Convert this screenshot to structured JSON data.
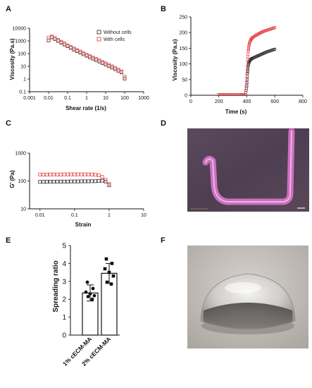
{
  "panels": {
    "A": "A",
    "B": "B",
    "C": "C",
    "D": "D",
    "E": "E",
    "F": "F"
  },
  "colors": {
    "without_cells": "#333333",
    "with_cells": "#e8474c",
    "bar_fill": "#ffffff",
    "point": "#111111"
  },
  "chart_data": [
    {
      "panel": "A",
      "type": "scatter",
      "xlabel": "Shear rate (1/s)",
      "ylabel": "Viscosity (Pa.s)",
      "xscale": "log",
      "yscale": "log",
      "xlim": [
        0.001,
        1000
      ],
      "ylim": [
        0.1,
        10000
      ],
      "x_ticks": [
        0.001,
        0.01,
        0.1,
        1,
        10,
        100,
        1000
      ],
      "x_tick_labels": [
        "0.001",
        "0.01",
        "0.1",
        "1",
        "10",
        "100",
        "1000"
      ],
      "y_ticks": [
        0.1,
        1,
        10,
        100,
        1000,
        10000
      ],
      "y_tick_labels": [
        "0.1",
        "1",
        "10",
        "100",
        "1000",
        "10000"
      ],
      "legend": "top-right",
      "series": [
        {
          "name": "Without cells",
          "marker": "square-open",
          "x": [
            0.01,
            0.0147,
            0.0215,
            0.0316,
            0.0464,
            0.0681,
            0.1,
            0.147,
            0.215,
            0.316,
            0.464,
            0.681,
            1,
            1.47,
            2.15,
            3.16,
            4.64,
            6.81,
            10,
            14.7,
            21.5,
            31.6,
            46.4,
            68.1,
            100
          ],
          "y": [
            1100,
            1900,
            1400,
            1000,
            720,
            520,
            380,
            280,
            210,
            160,
            120,
            90,
            68,
            52,
            40,
            31,
            24,
            18,
            14,
            10.5,
            8,
            6,
            4.5,
            3.3,
            1.1
          ]
        },
        {
          "name": "With cells",
          "marker": "square-open",
          "x": [
            0.01,
            0.0147,
            0.0215,
            0.0316,
            0.0464,
            0.0681,
            0.1,
            0.147,
            0.215,
            0.316,
            0.464,
            0.681,
            1,
            1.47,
            2.15,
            3.16,
            4.64,
            6.81,
            10,
            14.7,
            21.5,
            31.6,
            46.4,
            68.1,
            100
          ],
          "y": [
            1800,
            2200,
            1700,
            1200,
            850,
            620,
            450,
            330,
            250,
            190,
            145,
            110,
            82,
            63,
            49,
            38,
            29,
            22,
            17,
            13,
            10,
            7.5,
            5.5,
            4,
            1.5
          ]
        }
      ]
    },
    {
      "panel": "B",
      "type": "scatter",
      "xlabel": "Time (s)",
      "ylabel": "Viscosity (Pa.s)",
      "xlim": [
        0,
        800
      ],
      "ylim": [
        0,
        250
      ],
      "x_ticks": [
        0,
        200,
        400,
        600,
        800
      ],
      "x_tick_labels": [
        "0",
        "200",
        "400",
        "600",
        "800"
      ],
      "y_ticks": [
        0,
        50,
        100,
        150,
        200,
        250
      ],
      "y_tick_labels": [
        "0",
        "50",
        "100",
        "150",
        "200",
        "250"
      ],
      "series": [
        {
          "name": "Without cells",
          "x": [
            200,
            250,
            300,
            350,
            390,
            400,
            405,
            410,
            415,
            420,
            430,
            440,
            460,
            480,
            500,
            520,
            540,
            560,
            580,
            600
          ],
          "y": [
            2,
            2,
            2,
            2,
            2,
            30,
            70,
            95,
            105,
            110,
            115,
            118,
            122,
            126,
            130,
            134,
            138,
            141,
            144,
            147
          ]
        },
        {
          "name": "With cells",
          "x": [
            200,
            250,
            300,
            350,
            390,
            400,
            405,
            410,
            415,
            420,
            430,
            440,
            460,
            480,
            500,
            520,
            540,
            560,
            580,
            600
          ],
          "y": [
            2,
            2,
            2,
            2,
            2,
            55,
            105,
            140,
            158,
            168,
            178,
            184,
            190,
            195,
            200,
            204,
            207,
            210,
            213,
            216
          ]
        }
      ]
    },
    {
      "panel": "C",
      "type": "scatter",
      "xlabel": "Strain",
      "ylabel": "G' (Pa)",
      "xscale": "log",
      "yscale": "log",
      "xlim": [
        0.005,
        10
      ],
      "ylim": [
        10,
        1000
      ],
      "x_ticks": [
        0.01,
        0.1,
        1,
        10
      ],
      "x_tick_labels": [
        "0.01",
        "0.1",
        "1",
        "10"
      ],
      "y_ticks": [
        10,
        100,
        1000
      ],
      "y_tick_labels": [
        "10",
        "100",
        "1000"
      ],
      "series": [
        {
          "name": "Without cells",
          "x": [
            0.01,
            0.0126,
            0.0158,
            0.02,
            0.0251,
            0.0316,
            0.0398,
            0.0501,
            0.0631,
            0.0794,
            0.1,
            0.126,
            0.158,
            0.2,
            0.251,
            0.316,
            0.398,
            0.501,
            0.631,
            0.794,
            1.0
          ],
          "y": [
            93,
            93,
            94,
            94,
            94,
            95,
            95,
            95,
            95,
            96,
            96,
            96,
            97,
            97,
            97,
            98,
            98,
            100,
            102,
            95,
            70
          ]
        },
        {
          "name": "With cells",
          "x": [
            0.01,
            0.0126,
            0.0158,
            0.02,
            0.0251,
            0.0316,
            0.0398,
            0.0501,
            0.0631,
            0.0794,
            0.1,
            0.126,
            0.158,
            0.2,
            0.251,
            0.316,
            0.398,
            0.501,
            0.631,
            0.794,
            1.0
          ],
          "y": [
            170,
            170,
            170,
            171,
            171,
            171,
            171,
            172,
            172,
            172,
            172,
            172,
            172,
            172,
            172,
            171,
            168,
            160,
            140,
            110,
            78
          ]
        }
      ]
    },
    {
      "panel": "E",
      "type": "bar",
      "ylabel": "Spreading ratio",
      "categories": [
        "1% cECM-MA",
        "2% cECM-MA"
      ],
      "values": [
        2.35,
        3.45
      ],
      "error": [
        0.45,
        0.55
      ],
      "points": [
        [
          2.95,
          2.6,
          2.4,
          2.3,
          2.2,
          2.15,
          2.0
        ],
        [
          4.25,
          4.0,
          3.7,
          3.5,
          3.3,
          2.95,
          2.85
        ]
      ],
      "ylim": [
        0,
        5
      ],
      "y_ticks": [
        0,
        1,
        2,
        3,
        4,
        5
      ],
      "y_tick_labels": [
        "0",
        "1",
        "2",
        "3",
        "4",
        "5"
      ]
    }
  ]
}
